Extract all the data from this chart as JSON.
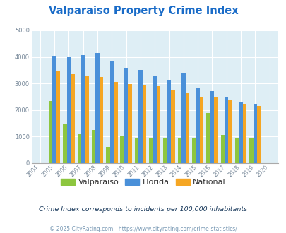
{
  "title": "Valparaiso Property Crime Index",
  "years": [
    2004,
    2005,
    2006,
    2007,
    2008,
    2009,
    2010,
    2011,
    2012,
    2013,
    2014,
    2015,
    2016,
    2017,
    2018,
    2019,
    2020
  ],
  "valparaiso": [
    0,
    2330,
    1450,
    1080,
    1260,
    600,
    1020,
    940,
    970,
    970,
    950,
    950,
    1900,
    1050,
    950,
    970,
    0
  ],
  "florida": [
    0,
    4020,
    3980,
    4080,
    4150,
    3830,
    3580,
    3510,
    3300,
    3130,
    3400,
    2820,
    2700,
    2510,
    2300,
    2200,
    0
  ],
  "national": [
    0,
    3460,
    3360,
    3270,
    3250,
    3060,
    2970,
    2960,
    2900,
    2750,
    2620,
    2500,
    2470,
    2360,
    2230,
    2160,
    0
  ],
  "ylim": [
    0,
    5000
  ],
  "yticks": [
    0,
    1000,
    2000,
    3000,
    4000,
    5000
  ],
  "bar_width": 0.27,
  "color_valparaiso": "#8dc63f",
  "color_florida": "#4a90d9",
  "color_national": "#f5a623",
  "bg_color": "#deeef5",
  "subtitle": "Crime Index corresponds to incidents per 100,000 inhabitants",
  "footer": "© 2025 CityRating.com - https://www.cityrating.com/crime-statistics/",
  "title_color": "#1a6cc8",
  "subtitle_color": "#1a3a5c",
  "footer_color": "#7a9ab5"
}
